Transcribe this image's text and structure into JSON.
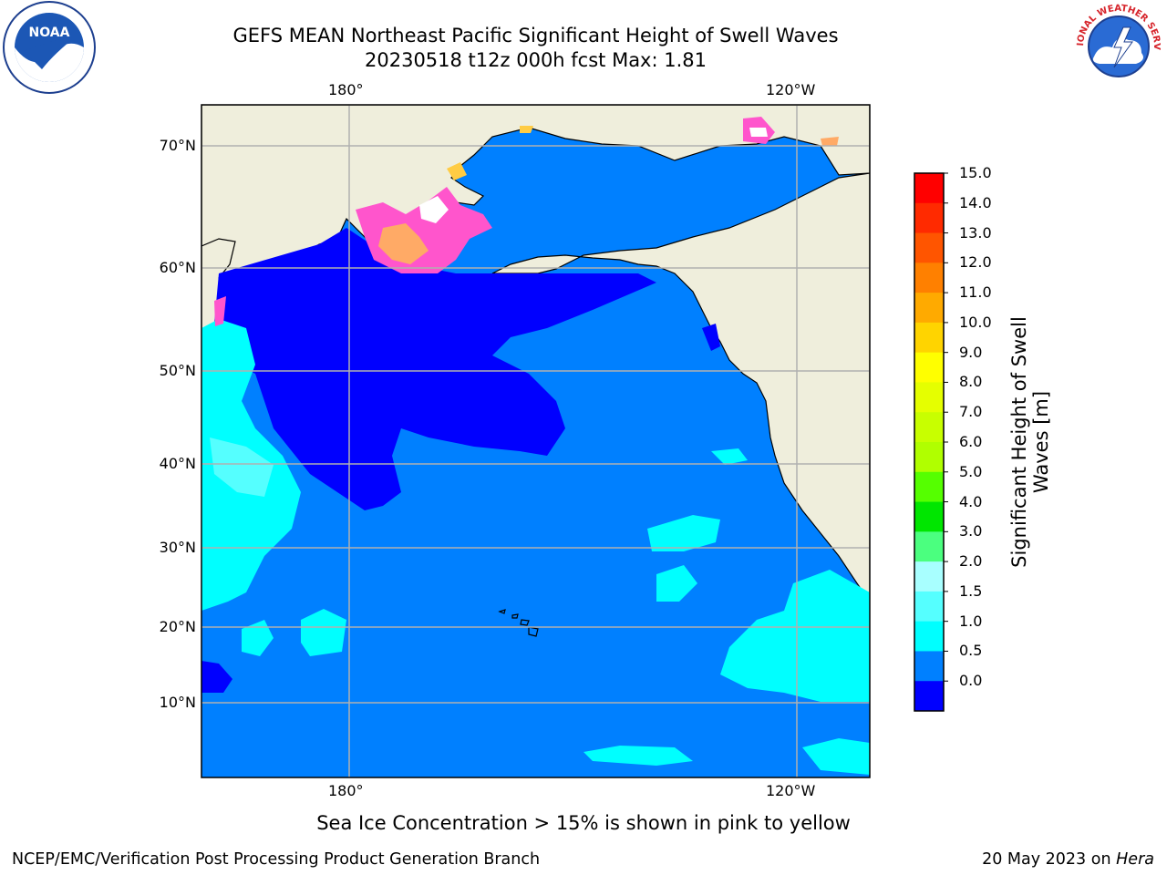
{
  "title": {
    "line1": "GEFS MEAN Northeast Pacific Significant Height of Swell Waves",
    "line2": "20230518 t12z 000h fcst   Max: 1.81"
  },
  "map": {
    "lon_labels_top": [
      "180°",
      "120°W"
    ],
    "lon_labels_bottom": [
      "180°",
      "120°W"
    ],
    "lat_labels": [
      "70°N",
      "60°N",
      "50°N",
      "40°N",
      "30°N",
      "20°N",
      "10°N"
    ],
    "land_color": "#efeedc",
    "ocean_color": "#0080ff"
  },
  "colorbar": {
    "title": "Significant Height of Swell Waves [m]",
    "labels": [
      "15.0",
      "14.0",
      "13.0",
      "12.0",
      "11.0",
      "10.0",
      "9.0",
      "8.0",
      "7.0",
      "6.0",
      "5.0",
      "4.0",
      "3.0",
      "2.0",
      "1.5",
      "1.0",
      "0.5",
      "0.0"
    ],
    "colors": [
      "#ff0000",
      "#ff2a00",
      "#ff5500",
      "#ff8000",
      "#ffaa00",
      "#ffd400",
      "#ffff00",
      "#e5ff00",
      "#c8ff00",
      "#b0ff00",
      "#55ff00",
      "#00e600",
      "#4bff7f",
      "#a8ffff",
      "#55ffff",
      "#00ffff",
      "#0080ff",
      "#0000ff"
    ]
  },
  "sea_ice_note": "Sea Ice Concentration > 15% is shown in pink to yellow",
  "footer": {
    "left": "NCEP/EMC/Verification Post Processing Product Generation Branch",
    "date": "20 May 2023 on",
    "machine": "Hera"
  },
  "logos": {
    "noaa_text": "NOAA",
    "nws_text": "NATIONAL WEATHER SERVICE"
  }
}
